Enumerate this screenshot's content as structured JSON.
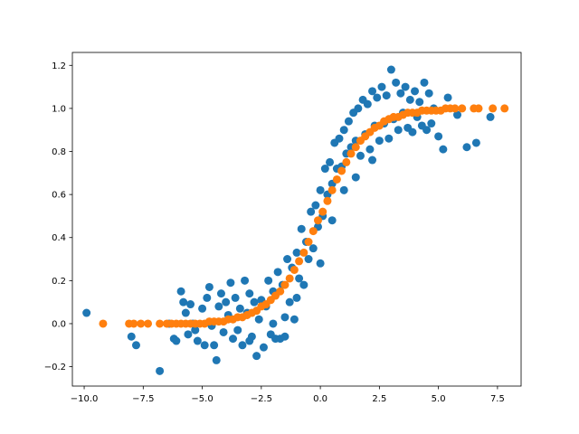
{
  "chart_data": {
    "type": "scatter",
    "xlim": [
      -10.5,
      8.5
    ],
    "ylim": [
      -0.29,
      1.26
    ],
    "x_ticks": [
      {
        "value": -10.0,
        "label": "−10.0"
      },
      {
        "value": -7.5,
        "label": "−7.5"
      },
      {
        "value": -5.0,
        "label": "−5.0"
      },
      {
        "value": -2.5,
        "label": "−2.5"
      },
      {
        "value": 0.0,
        "label": "0.0"
      },
      {
        "value": 2.5,
        "label": "2.5"
      },
      {
        "value": 5.0,
        "label": "5.0"
      },
      {
        "value": 7.5,
        "label": "7.5"
      }
    ],
    "y_ticks": [
      {
        "value": -0.2,
        "label": "−0.2"
      },
      {
        "value": 0.0,
        "label": "0.0"
      },
      {
        "value": 0.2,
        "label": "0.2"
      },
      {
        "value": 0.4,
        "label": "0.4"
      },
      {
        "value": 0.6,
        "label": "0.6"
      },
      {
        "value": 0.8,
        "label": "0.8"
      },
      {
        "value": 1.0,
        "label": "1.0"
      },
      {
        "value": 1.2,
        "label": "1.2"
      }
    ],
    "grid": false,
    "series": [
      {
        "color": "#1f77b4",
        "points": [
          [
            -9.9,
            0.05
          ],
          [
            -8.0,
            -0.06
          ],
          [
            -7.8,
            -0.1
          ],
          [
            -6.8,
            -0.22
          ],
          [
            -6.4,
            0.0
          ],
          [
            -6.2,
            -0.07
          ],
          [
            -6.1,
            -0.08
          ],
          [
            -5.9,
            0.15
          ],
          [
            -5.8,
            0.1
          ],
          [
            -5.7,
            0.05
          ],
          [
            -5.6,
            -0.05
          ],
          [
            -5.5,
            0.09
          ],
          [
            -5.4,
            0.0
          ],
          [
            -5.3,
            -0.03
          ],
          [
            -5.2,
            -0.08
          ],
          [
            -5.0,
            0.07
          ],
          [
            -4.9,
            -0.1
          ],
          [
            -4.8,
            0.12
          ],
          [
            -4.7,
            0.17
          ],
          [
            -4.6,
            -0.01
          ],
          [
            -4.5,
            -0.1
          ],
          [
            -4.4,
            -0.17
          ],
          [
            -4.3,
            0.08
          ],
          [
            -4.2,
            0.14
          ],
          [
            -4.1,
            -0.04
          ],
          [
            -4.0,
            0.1
          ],
          [
            -3.9,
            0.04
          ],
          [
            -3.8,
            0.19
          ],
          [
            -3.7,
            -0.07
          ],
          [
            -3.6,
            0.12
          ],
          [
            -3.5,
            -0.03
          ],
          [
            -3.4,
            0.07
          ],
          [
            -3.3,
            -0.1
          ],
          [
            -3.2,
            0.2
          ],
          [
            -3.1,
            0.05
          ],
          [
            -3.0,
            0.14
          ],
          [
            -2.9,
            -0.06
          ],
          [
            -2.8,
            0.1
          ],
          [
            -2.7,
            -0.15
          ],
          [
            -2.6,
            0.02
          ],
          [
            -2.5,
            0.11
          ],
          [
            -2.4,
            -0.11
          ],
          [
            -2.3,
            0.08
          ],
          [
            -2.2,
            0.2
          ],
          [
            -2.1,
            -0.05
          ],
          [
            -2.0,
            0.15
          ],
          [
            -1.9,
            -0.07
          ],
          [
            -1.8,
            0.24
          ],
          [
            -1.7,
            -0.07
          ],
          [
            -1.6,
            0.18
          ],
          [
            -1.5,
            0.03
          ],
          [
            -1.4,
            0.3
          ],
          [
            -1.3,
            0.1
          ],
          [
            -1.2,
            0.26
          ],
          [
            -1.1,
            0.02
          ],
          [
            -1.0,
            0.33
          ],
          [
            -0.9,
            0.21
          ],
          [
            -0.8,
            0.44
          ],
          [
            -0.7,
            0.18
          ],
          [
            -0.6,
            0.38
          ],
          [
            -0.5,
            0.3
          ],
          [
            -0.4,
            0.52
          ],
          [
            -0.3,
            0.35
          ],
          [
            -0.2,
            0.55
          ],
          [
            -0.1,
            0.45
          ],
          [
            0.0,
            0.62
          ],
          [
            0.1,
            0.5
          ],
          [
            0.2,
            0.72
          ],
          [
            0.3,
            0.6
          ],
          [
            0.4,
            0.75
          ],
          [
            0.5,
            0.65
          ],
          [
            0.6,
            0.84
          ],
          [
            0.7,
            0.72
          ],
          [
            0.8,
            0.86
          ],
          [
            0.9,
            0.73
          ],
          [
            1.0,
            0.9
          ],
          [
            1.1,
            0.79
          ],
          [
            1.2,
            0.94
          ],
          [
            1.3,
            0.82
          ],
          [
            1.4,
            0.98
          ],
          [
            1.5,
            0.85
          ],
          [
            1.6,
            1.0
          ],
          [
            1.7,
            0.78
          ],
          [
            1.8,
            1.04
          ],
          [
            1.9,
            0.88
          ],
          [
            2.0,
            1.02
          ],
          [
            2.1,
            0.81
          ],
          [
            2.2,
            1.08
          ],
          [
            2.3,
            0.92
          ],
          [
            2.4,
            1.05
          ],
          [
            2.5,
            0.85
          ],
          [
            2.6,
            1.1
          ],
          [
            2.7,
            0.93
          ],
          [
            2.8,
            1.06
          ],
          [
            2.9,
            0.86
          ],
          [
            3.0,
            1.18
          ],
          [
            3.1,
            0.95
          ],
          [
            3.2,
            1.12
          ],
          [
            3.3,
            0.9
          ],
          [
            3.4,
            1.07
          ],
          [
            3.5,
            0.98
          ],
          [
            3.6,
            1.1
          ],
          [
            3.7,
            0.91
          ],
          [
            3.8,
            1.04
          ],
          [
            3.9,
            0.89
          ],
          [
            4.0,
            1.08
          ],
          [
            4.1,
            0.96
          ],
          [
            4.2,
            1.03
          ],
          [
            4.3,
            0.92
          ],
          [
            4.4,
            1.12
          ],
          [
            4.5,
            0.9
          ],
          [
            4.6,
            1.07
          ],
          [
            4.7,
            0.93
          ],
          [
            4.8,
            1.0
          ],
          [
            5.0,
            0.87
          ],
          [
            5.2,
            0.81
          ],
          [
            5.4,
            1.05
          ],
          [
            5.8,
            0.97
          ],
          [
            6.2,
            0.82
          ],
          [
            6.6,
            0.84
          ],
          [
            7.2,
            0.96
          ],
          [
            -2.0,
            0.0
          ],
          [
            -1.0,
            0.12
          ],
          [
            0.5,
            0.48
          ],
          [
            1.5,
            0.68
          ],
          [
            2.2,
            0.76
          ],
          [
            -3.0,
            -0.08
          ],
          [
            -1.5,
            -0.06
          ],
          [
            0.0,
            0.28
          ],
          [
            1.0,
            0.62
          ]
        ]
      },
      {
        "color": "#ff7f0e",
        "points": [
          [
            -9.2,
            0.0
          ],
          [
            -8.1,
            0.0
          ],
          [
            -7.9,
            0.0
          ],
          [
            -7.6,
            0.0
          ],
          [
            -7.3,
            0.0
          ],
          [
            -6.8,
            0.0
          ],
          [
            -6.5,
            0.0
          ],
          [
            -6.3,
            0.0
          ],
          [
            -6.1,
            0.0
          ],
          [
            -5.9,
            0.0
          ],
          [
            -5.7,
            0.0
          ],
          [
            -5.5,
            0.0
          ],
          [
            -5.3,
            0.0
          ],
          [
            -5.1,
            0.0
          ],
          [
            -4.9,
            0.0
          ],
          [
            -4.7,
            0.01
          ],
          [
            -4.5,
            0.01
          ],
          [
            -4.3,
            0.01
          ],
          [
            -4.1,
            0.01
          ],
          [
            -3.9,
            0.02
          ],
          [
            -3.7,
            0.02
          ],
          [
            -3.5,
            0.03
          ],
          [
            -3.3,
            0.03
          ],
          [
            -3.1,
            0.04
          ],
          [
            -2.9,
            0.05
          ],
          [
            -2.7,
            0.06
          ],
          [
            -2.5,
            0.08
          ],
          [
            -2.3,
            0.09
          ],
          [
            -2.1,
            0.11
          ],
          [
            -1.9,
            0.13
          ],
          [
            -1.7,
            0.15
          ],
          [
            -1.5,
            0.18
          ],
          [
            -1.3,
            0.21
          ],
          [
            -1.1,
            0.25
          ],
          [
            -0.9,
            0.29
          ],
          [
            -0.7,
            0.33
          ],
          [
            -0.5,
            0.38
          ],
          [
            -0.3,
            0.43
          ],
          [
            -0.1,
            0.48
          ],
          [
            0.1,
            0.52
          ],
          [
            0.3,
            0.57
          ],
          [
            0.5,
            0.62
          ],
          [
            0.7,
            0.67
          ],
          [
            0.9,
            0.71
          ],
          [
            1.1,
            0.75
          ],
          [
            1.3,
            0.79
          ],
          [
            1.5,
            0.82
          ],
          [
            1.7,
            0.85
          ],
          [
            1.9,
            0.87
          ],
          [
            2.1,
            0.89
          ],
          [
            2.3,
            0.91
          ],
          [
            2.5,
            0.92
          ],
          [
            2.7,
            0.94
          ],
          [
            2.9,
            0.95
          ],
          [
            3.1,
            0.96
          ],
          [
            3.3,
            0.96
          ],
          [
            3.5,
            0.97
          ],
          [
            3.7,
            0.98
          ],
          [
            3.9,
            0.98
          ],
          [
            4.1,
            0.98
          ],
          [
            4.3,
            0.99
          ],
          [
            4.5,
            0.99
          ],
          [
            4.7,
            0.99
          ],
          [
            4.9,
            0.99
          ],
          [
            5.1,
            0.99
          ],
          [
            5.3,
            1.0
          ],
          [
            5.5,
            1.0
          ],
          [
            5.7,
            1.0
          ],
          [
            6.0,
            1.0
          ],
          [
            6.5,
            1.0
          ],
          [
            6.7,
            1.0
          ],
          [
            7.3,
            1.0
          ],
          [
            7.8,
            1.0
          ]
        ]
      }
    ]
  }
}
